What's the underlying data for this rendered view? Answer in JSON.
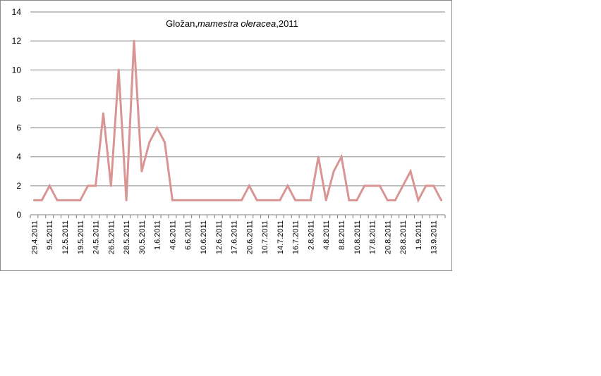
{
  "chart_data": {
    "type": "line",
    "title_parts": {
      "prefix": "Gložan,",
      "italic": "mamestra oleracea",
      "suffix": ",2011"
    },
    "xlabel": "",
    "ylabel": "",
    "ylim": [
      0,
      14
    ],
    "yticks": [
      0,
      2,
      4,
      6,
      8,
      10,
      12,
      14
    ],
    "grid": true,
    "legend": "none",
    "line_color": "#d99594",
    "x_tick_labels": [
      "29.4.2011",
      "9.5.2011",
      "12.5.2011",
      "19.5.2011",
      "24.5.2011",
      "26.5.2011",
      "28.5.2011",
      "30.5.2011",
      "1.6.2011",
      "4.6.2011",
      "6.6.2011",
      "10.6.2011",
      "12.6.2011",
      "17.6.2011",
      "20.6.2011",
      "10.7.2011",
      "14.7.2011",
      "16.7.2011",
      "2.8.2011",
      "4.8.2011",
      "8.8.2011",
      "10.8.2011",
      "17.8.2011",
      "20.8.2011",
      "28.8.2011",
      "1.9.2011",
      "13.9.2011"
    ],
    "series": [
      {
        "values": [
          1,
          1,
          2,
          1,
          1,
          1,
          1,
          2,
          2,
          7,
          2,
          10,
          1,
          12,
          3,
          5,
          6,
          5,
          1,
          1,
          1,
          1,
          1,
          1,
          1,
          1,
          1,
          1,
          2,
          1,
          1,
          1,
          1,
          2,
          1,
          1,
          1,
          4,
          1,
          3,
          4,
          1,
          1,
          2,
          2,
          2,
          1,
          1,
          2,
          3,
          1,
          2,
          2,
          1
        ]
      }
    ]
  }
}
